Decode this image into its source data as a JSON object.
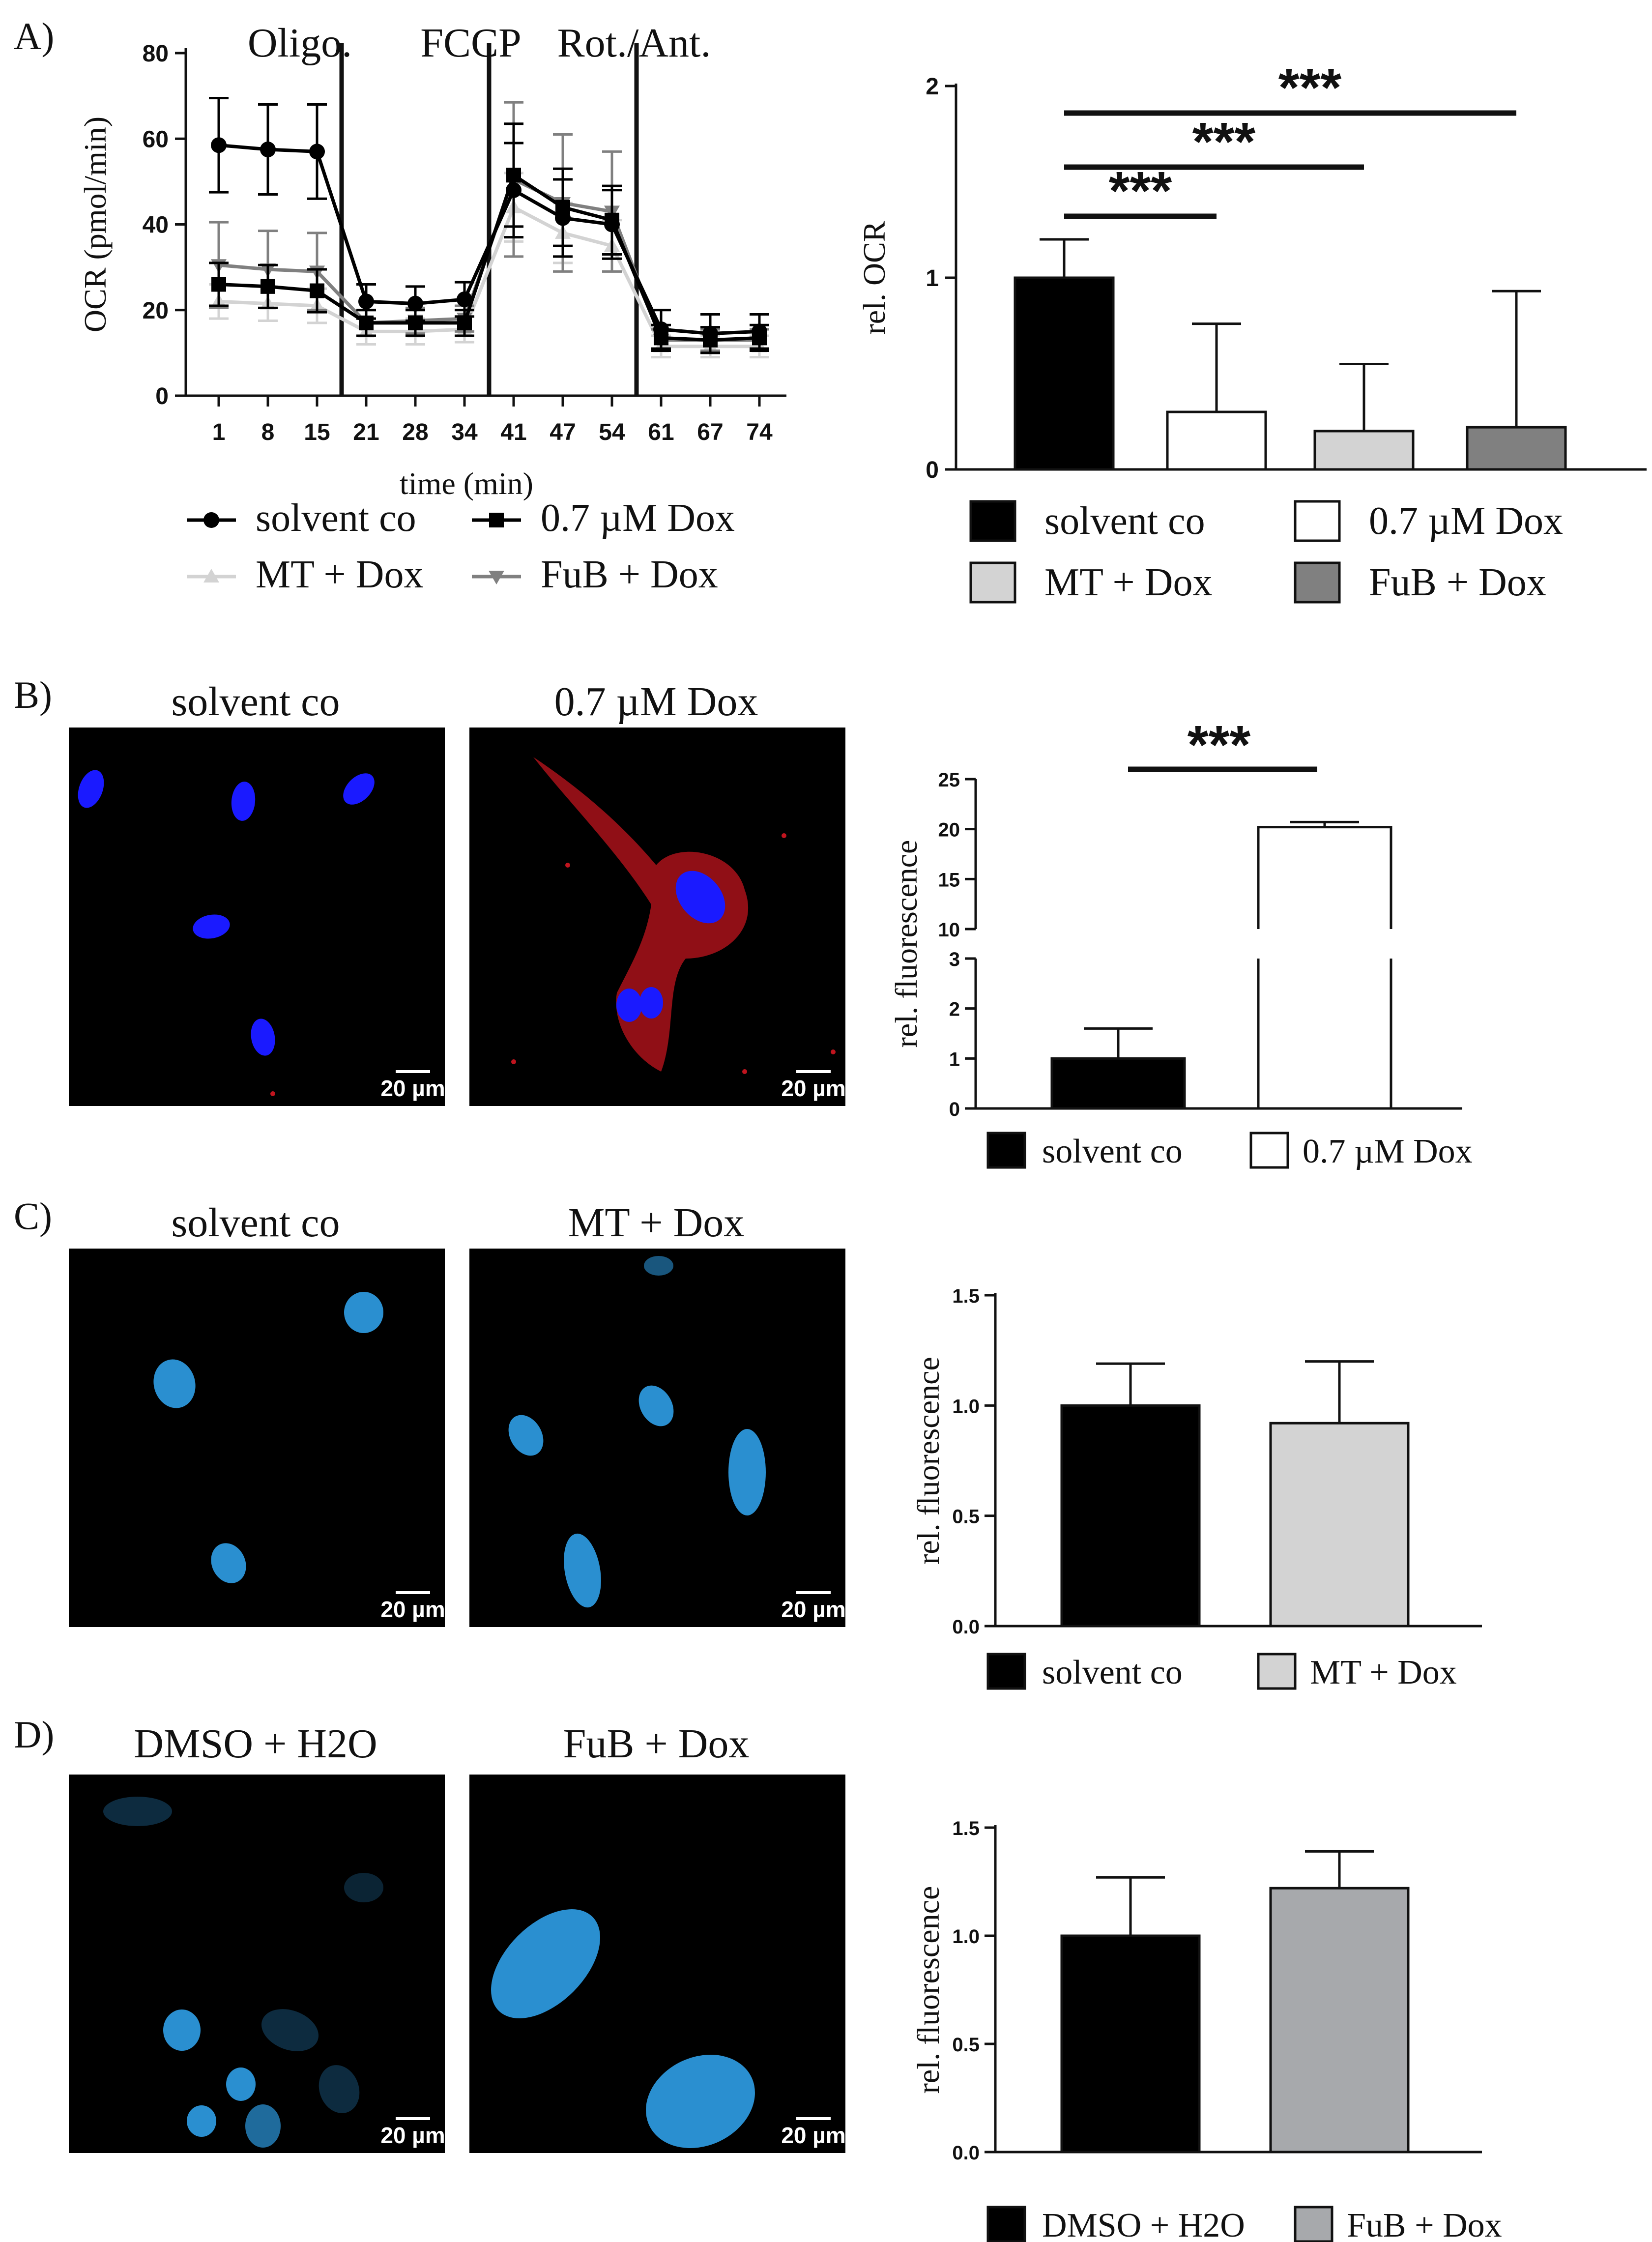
{
  "panels": {
    "A": "A)",
    "B": "B)",
    "C": "C)",
    "D": "D)"
  },
  "colors": {
    "solvent": "#000000",
    "dox": "#ffffff",
    "mt": "#d3d3d3",
    "fub": "#808080",
    "fub_bar_D": "#a7a9ac",
    "nucleus_blue_B": "#1a1aff",
    "nucleus_blue_CD": "#2a8fd0",
    "mito_red": "#c0141e"
  },
  "chart_data": [
    {
      "id": "A-left",
      "type": "line",
      "xlabel": "time (min)",
      "ylabel": "OCR (pmol/min)",
      "ylim": [
        0,
        80
      ],
      "yticks": [
        0,
        20,
        40,
        60,
        80
      ],
      "x": [
        "1",
        "8",
        "15",
        "21",
        "28",
        "34",
        "41",
        "47",
        "54",
        "61",
        "67",
        "74"
      ],
      "treatments": [
        "Oligo.",
        "FCCP",
        "Rot./Ant."
      ],
      "series": [
        {
          "name": "solvent co",
          "marker": "circle",
          "color": "#000000",
          "values": [
            58.5,
            57.5,
            57,
            22,
            21.5,
            22.5,
            48,
            41.5,
            40,
            15.5,
            14.5,
            15
          ],
          "err": [
            11,
            10.5,
            11,
            4,
            4,
            4,
            11,
            9,
            8,
            4.5,
            4.5,
            4
          ]
        },
        {
          "name": "0.7 µM Dox",
          "marker": "square",
          "color": "#000000",
          "values": [
            26,
            25.5,
            24.5,
            17,
            17,
            17,
            51.5,
            44,
            41,
            13.5,
            13,
            13.5
          ],
          "err": [
            5,
            5,
            5,
            3,
            3,
            3,
            12,
            9,
            8,
            3,
            3,
            3
          ]
        },
        {
          "name": "MT + Dox",
          "marker": "triangle-up",
          "color": "#d3d3d3",
          "values": [
            22,
            21.5,
            21,
            15,
            15,
            15.5,
            44,
            38,
            35,
            11.5,
            11.5,
            11.5
          ],
          "err": [
            4,
            4,
            4,
            3,
            3,
            3,
            8,
            7,
            6,
            2.5,
            2.5,
            2.5
          ]
        },
        {
          "name": "FuB + Dox",
          "marker": "triangle-down",
          "color": "#808080",
          "values": [
            30.5,
            29.5,
            29,
            17,
            17.5,
            18,
            50.5,
            45,
            43,
            13,
            13,
            13
          ],
          "err": [
            10,
            9,
            9,
            3,
            3,
            3,
            18,
            16,
            14,
            2.5,
            2.5,
            2.5
          ]
        }
      ]
    },
    {
      "id": "A-right",
      "type": "bar",
      "ylabel": "rel. OCR",
      "ylim": [
        0,
        2
      ],
      "yticks": [
        0,
        1,
        2
      ],
      "categories": [
        "solvent co",
        "0.7 µM Dox",
        "MT + Dox",
        "FuB + Dox"
      ],
      "values": [
        1.0,
        0.3,
        0.2,
        0.22
      ],
      "err": [
        0.2,
        0.46,
        0.35,
        0.71
      ],
      "colors": [
        "#000000",
        "#ffffff",
        "#d3d3d3",
        "#808080"
      ],
      "significance": [
        {
          "from": 0,
          "to": 1,
          "label": "***"
        },
        {
          "from": 0,
          "to": 2,
          "label": "***"
        },
        {
          "from": 0,
          "to": 3,
          "label": "***"
        }
      ]
    },
    {
      "id": "B",
      "type": "bar",
      "ylabel": "rel. fluorescence",
      "yticks_lower": [
        0,
        1,
        2,
        3
      ],
      "yticks_upper": [
        10,
        15,
        20,
        25
      ],
      "axis_break": [
        3,
        10
      ],
      "categories": [
        "solvent co",
        "0.7 µM Dox"
      ],
      "values": [
        1.0,
        20.2
      ],
      "err": [
        0.6,
        0.5
      ],
      "colors": [
        "#000000",
        "#ffffff"
      ],
      "significance": [
        {
          "from": 0,
          "to": 1,
          "label": "***"
        }
      ]
    },
    {
      "id": "C",
      "type": "bar",
      "ylabel": "rel. fluorescence",
      "ylim": [
        0,
        1.5
      ],
      "yticks": [
        "0.0",
        "0.5",
        "1.0",
        "1.5"
      ],
      "categories": [
        "solvent co",
        "MT + Dox"
      ],
      "values": [
        1.0,
        0.92
      ],
      "err": [
        0.19,
        0.28
      ],
      "colors": [
        "#000000",
        "#d3d3d3"
      ]
    },
    {
      "id": "D",
      "type": "bar",
      "ylabel": "rel. fluorescence",
      "ylim": [
        0,
        1.5
      ],
      "yticks": [
        "0.0",
        "0.5",
        "1.0",
        "1.5"
      ],
      "categories": [
        "DMSO + H2O",
        "FuB + Dox"
      ],
      "values": [
        1.0,
        1.22
      ],
      "err": [
        0.27,
        0.17
      ],
      "colors": [
        "#000000",
        "#a7a9ac"
      ]
    }
  ],
  "images": {
    "B": {
      "left_title": "solvent co",
      "right_title": "0.7 µM Dox",
      "scale": "20 µm"
    },
    "C": {
      "left_title": "solvent co",
      "right_title": "MT + Dox",
      "scale": "20 µm"
    },
    "D": {
      "left_title": "DMSO + H2O",
      "right_title": "FuB + Dox",
      "scale": "20 µm"
    }
  }
}
